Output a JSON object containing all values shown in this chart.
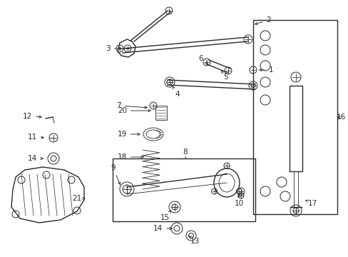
{
  "bg_color": "#ffffff",
  "line_color": "#2a2a2a",
  "label_color": "#1a1a1a",
  "fig_width": 4.89,
  "fig_height": 3.6,
  "dpi": 100
}
